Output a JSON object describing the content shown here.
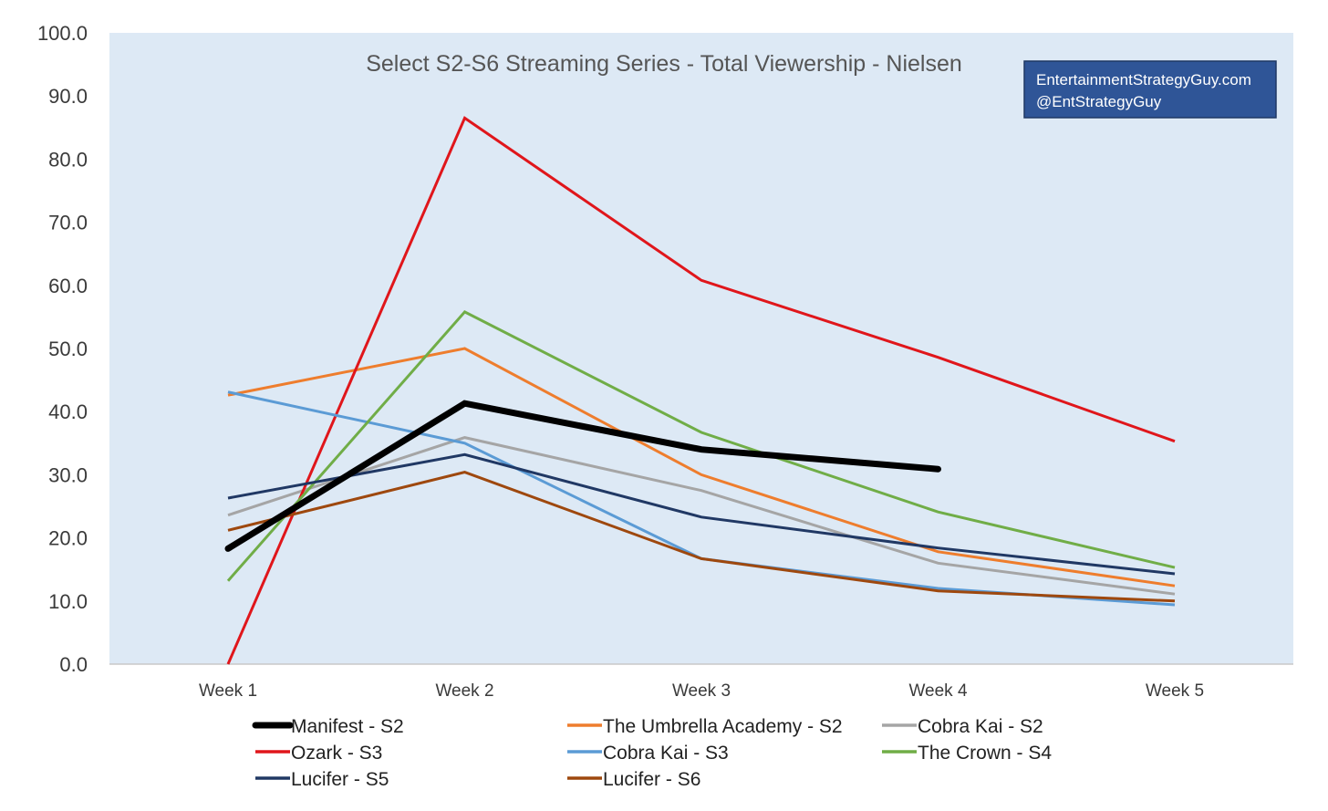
{
  "chart_data": {
    "type": "line",
    "title": "Select S2-S6 Streaming Series - Total Viewership - Nielsen",
    "categories": [
      "Week 1",
      "Week 2",
      "Week 3",
      "Week 4",
      "Week 5"
    ],
    "ylim": [
      0,
      100
    ],
    "yticks": [
      "0.0",
      "10.0",
      "20.0",
      "30.0",
      "40.0",
      "50.0",
      "60.0",
      "70.0",
      "80.0",
      "90.0",
      "100.0"
    ],
    "grid": false,
    "legend_position": "bottom",
    "plot_background": "#dde9f5",
    "series": [
      {
        "name": "Manifest - S2",
        "color": "#000000",
        "width": 7,
        "values": [
          18.3,
          41.3,
          34.0,
          30.9,
          null
        ]
      },
      {
        "name": "The Umbrella Academy - S2",
        "color": "#ee7d2d",
        "width": 3,
        "values": [
          42.6,
          50.0,
          30.0,
          17.8,
          12.4
        ]
      },
      {
        "name": "Cobra Kai - S2",
        "color": "#a5a5a5",
        "width": 3,
        "values": [
          23.6,
          35.9,
          27.5,
          16.0,
          11.1
        ]
      },
      {
        "name": "Ozark - S3",
        "color": "#e0161b",
        "width": 3,
        "values": [
          0.0,
          86.5,
          60.8,
          48.6,
          35.3
        ]
      },
      {
        "name": "Cobra Kai - S3",
        "color": "#5b9bd5",
        "width": 3,
        "values": [
          43.1,
          35.0,
          16.7,
          12.0,
          9.4
        ]
      },
      {
        "name": "The Crown - S4",
        "color": "#70ad47",
        "width": 3,
        "values": [
          13.2,
          55.8,
          36.7,
          24.1,
          15.3
        ]
      },
      {
        "name": "Lucifer - S5",
        "color": "#203864",
        "width": 3,
        "values": [
          26.3,
          33.2,
          23.3,
          18.4,
          14.3
        ]
      },
      {
        "name": "Lucifer - S6",
        "color": "#9e480e",
        "width": 3,
        "values": [
          21.2,
          30.4,
          16.7,
          11.6,
          10.0
        ]
      }
    ],
    "watermark": {
      "line1": "EntertainmentStrategyGuy.com",
      "line2": "@EntStrategyGuy",
      "background": "#2f5597"
    }
  }
}
